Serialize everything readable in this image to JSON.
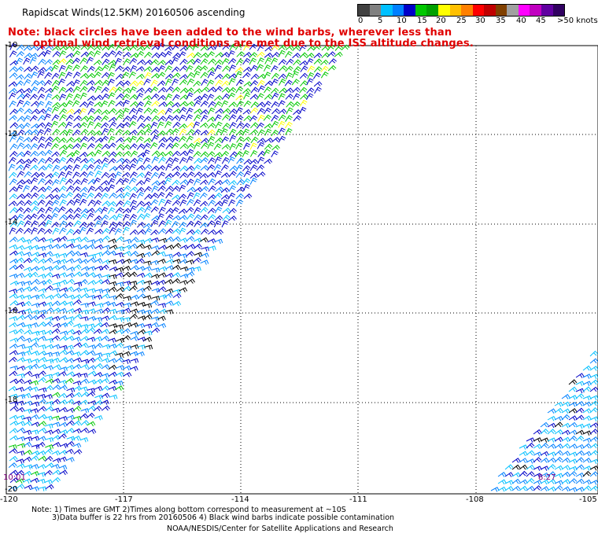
{
  "title": "Rapidscat Winds(12.5KM) 20160506 ascending",
  "note_line1": "Note: black circles have been added to the wind barbs, wherever less than",
  "note_line2": "optimal wind retrieval conditions are met due to the ISS altitude changes.",
  "colorbar": {
    "colors": [
      "#404040",
      "#808080",
      "#00c0ff",
      "#0080ff",
      "#0000c8",
      "#00c800",
      "#00a000",
      "#ffff00",
      "#ffc000",
      "#ff8000",
      "#ff0000",
      "#c00000",
      "#804000",
      "#a0a0a0",
      "#ff00ff",
      "#c000c0",
      "#6000a0",
      "#300060"
    ],
    "labels": [
      "0",
      "5",
      "10",
      "15",
      "20",
      "25",
      "30",
      "35",
      "40",
      "45",
      ">50 knots"
    ]
  },
  "lat_labels": [
    "-10",
    "-12",
    "-14",
    "-16",
    "-18",
    "-20"
  ],
  "lon_labels": [
    "-120",
    "-117",
    "-114",
    "-111",
    "-108",
    "-105"
  ],
  "swath_times": [
    "10:01",
    "8:27"
  ],
  "footnote_line1": "Note: 1) Times are GMT 2)Times along bottom correspond to measurement at ~10S",
  "footnote_line2": "3)Data buffer is 22 hrs from 20160506 4) Black wind barbs indicate possible contamination",
  "credit": "NOAA/NESDIS/Center for Satellite Applications and Research"
}
